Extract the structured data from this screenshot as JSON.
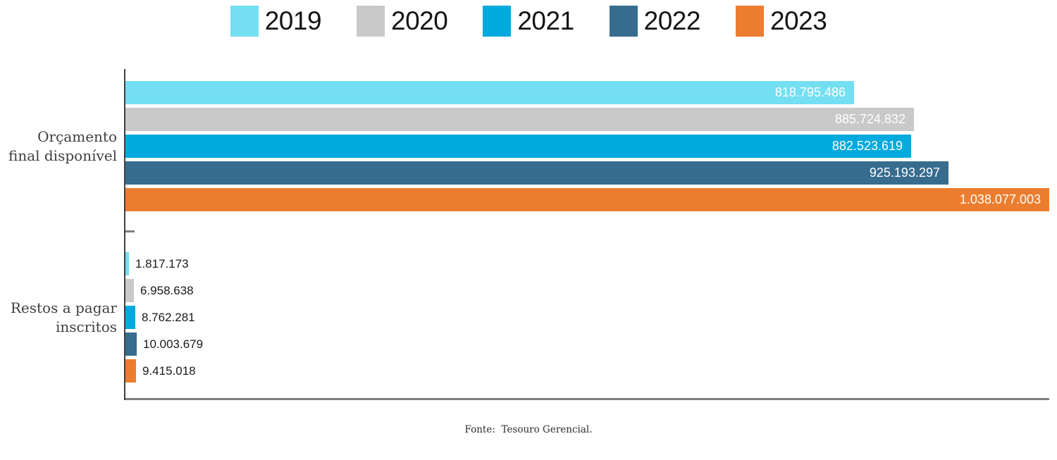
{
  "chart_data": {
    "type": "bar",
    "orientation": "horizontal",
    "title": "",
    "categories": [
      {
        "label": "Orçamento final disponível",
        "lines": [
          "Orçamento",
          "final disponível"
        ]
      },
      {
        "label": "Restos a pagar inscritos",
        "lines": [
          "Restos a pagar",
          "inscritos"
        ]
      }
    ],
    "series": [
      {
        "name": "2019",
        "color": "#74DFF2",
        "values": [
          818795486,
          1817173
        ],
        "value_labels": [
          "818.795.486",
          "1.817.173"
        ]
      },
      {
        "name": "2020",
        "color": "#C9C9C9",
        "values": [
          885724832,
          6958638
        ],
        "value_labels": [
          "885.724.832",
          "6.958.638"
        ]
      },
      {
        "name": "2021",
        "color": "#00A9DE",
        "values": [
          882523619,
          8762281
        ],
        "value_labels": [
          "882.523.619",
          "8.762.281"
        ]
      },
      {
        "name": "2022",
        "color": "#376C8E",
        "values": [
          925193297,
          10003679
        ],
        "value_labels": [
          "925.193.297",
          "10.003.679"
        ]
      },
      {
        "name": "2023",
        "color": "#ED7D2E",
        "values": [
          1038077003,
          9415018
        ],
        "value_labels": [
          "1.038.077.003",
          "9.415.018"
        ]
      }
    ],
    "xlim": [
      0,
      1038077003
    ],
    "grid": false,
    "legend_position": "top",
    "value_label_color_inside": "#FFFFFF",
    "value_label_color_outside": "#1A1A1A",
    "axis_color": "#3F3F3F",
    "baseline_color": "#7F7F7F",
    "category_label_color": "#3F3F3F"
  },
  "footer": {
    "source": "Fonte:  Tesouro Gerencial."
  }
}
